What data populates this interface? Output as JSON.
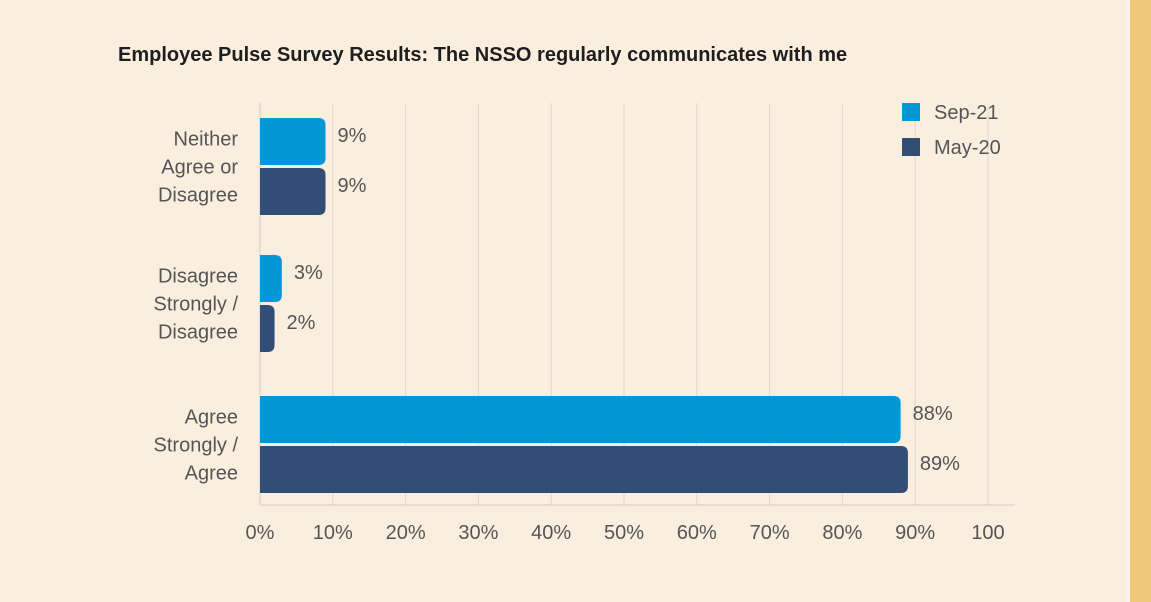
{
  "chart_data": {
    "type": "bar",
    "orientation": "horizontal",
    "title": "Employee Pulse Survey Results: The NSSO regularly communicates with me",
    "categories": [
      [
        "Neither",
        "Agree or",
        "Disagree"
      ],
      [
        "Disagree",
        "Strongly /",
        "Disagree"
      ],
      [
        "Agree",
        "Strongly /",
        "Agree"
      ]
    ],
    "series": [
      {
        "name": "Sep-21",
        "color": "#0397d6",
        "values": [
          9,
          3,
          88
        ],
        "labels": [
          "9%",
          "3%",
          "88%"
        ]
      },
      {
        "name": "May-20",
        "color": "#324d76",
        "values": [
          9,
          2,
          89
        ],
        "labels": [
          "9%",
          "2%",
          "89%"
        ]
      }
    ],
    "xlim": [
      0,
      100
    ],
    "xticks": [
      "0%",
      "10%",
      "20%",
      "30%",
      "40%",
      "50%",
      "60%",
      "70%",
      "80%",
      "90%",
      "100"
    ],
    "grid": true,
    "legend_position": "top-right"
  },
  "colors": {
    "background": "#faefdf",
    "accent_stripe": "#f0c87a",
    "grid": "#dcd8d0",
    "text": "#555555"
  }
}
